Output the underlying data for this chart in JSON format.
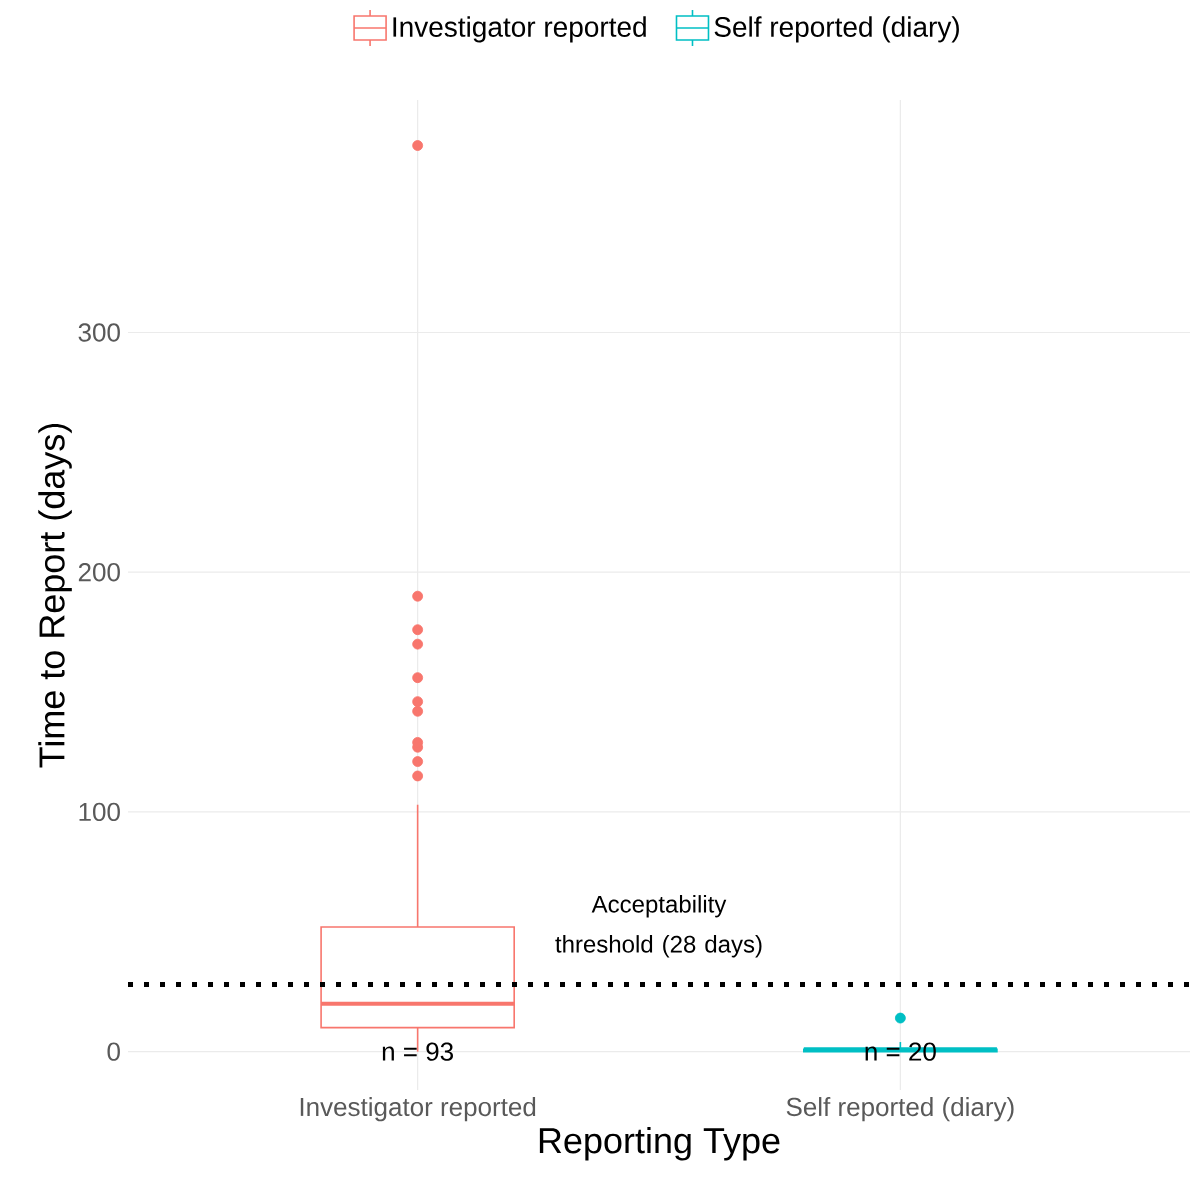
{
  "chart_data": {
    "type": "box",
    "categories": [
      "Investigator reported",
      "Self reported (diary)"
    ],
    "xlabel": "Reporting Type",
    "ylabel": "Time to Report (days)",
    "ylim": [
      -16,
      397
    ],
    "yticks": [
      0,
      100,
      200,
      300
    ],
    "grid": true,
    "legend": "top",
    "series": [
      {
        "name": "Investigator reported",
        "color": "#f8766d",
        "boxes": [
          {
            "low": 0,
            "q1": 10,
            "median": 20,
            "q3": 52,
            "high": 103,
            "outliers": [
              115,
              121,
              127,
              129,
              142,
              146,
              156,
              170,
              176,
              190,
              378
            ]
          },
          null
        ]
      },
      {
        "name": "Self reported (diary)",
        "color": "#00bfc4",
        "boxes": [
          null,
          {
            "low": 0,
            "q1": 0,
            "median": 1,
            "q3": 1,
            "high": 4,
            "outliers": [
              14
            ]
          }
        ]
      }
    ],
    "ref_lines": [
      {
        "axis": "y",
        "value": 28,
        "label": "Acceptability threshold (28 days)",
        "line_style": "dotted",
        "color": "#000000"
      }
    ],
    "annotations": [
      {
        "text": "n = 93",
        "x": "Investigator reported",
        "y": 0
      },
      {
        "text": "n = 20",
        "x": "Self reported (diary)",
        "y": 0
      }
    ]
  }
}
